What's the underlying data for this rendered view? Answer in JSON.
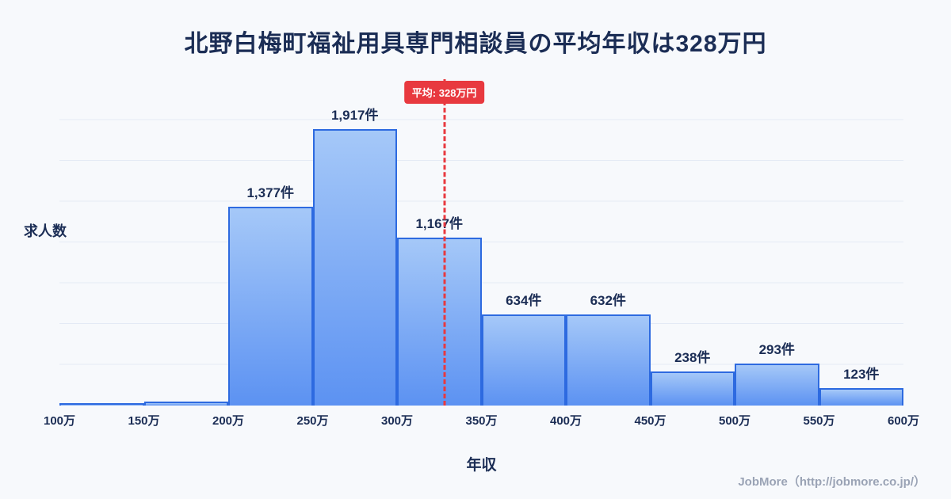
{
  "title": "北野白梅町福祉用具専門相談員の平均年収は328万円",
  "footer": "JobMore（http://jobmore.co.jp/）",
  "colors": {
    "background": "#f7f9fc",
    "title": "#1b2d55",
    "grid": "#e4eaf5",
    "bar_top": "#a5c8f8",
    "bar_bottom": "#5c92f2",
    "bar_border": "#2d6ae0",
    "average": "#e8393f",
    "footer": "#9aa3b5"
  },
  "chart_data": {
    "type": "bar",
    "title": "北野白梅町福祉用具専門相談員の平均年収は328万円",
    "xlabel": "年収",
    "ylabel": "求人数",
    "x_range": [
      100,
      600
    ],
    "bin_width_man_yen": 50,
    "x_ticks": [
      "100万",
      "150万",
      "200万",
      "250万",
      "300万",
      "350万",
      "400万",
      "450万",
      "500万",
      "550万",
      "600万"
    ],
    "categories": [
      "100万-150万",
      "150万-200万",
      "200万-250万",
      "250万-300万",
      "300万-350万",
      "350万-400万",
      "400万-450万",
      "450万-500万",
      "500万-550万",
      "550万-600万"
    ],
    "values": [
      15,
      25,
      1377,
      1917,
      1167,
      634,
      632,
      238,
      293,
      123
    ],
    "value_labels": [
      "",
      "",
      "1,377件",
      "1,917件",
      "1,167件",
      "634件",
      "632件",
      "238件",
      "293件",
      "123件"
    ],
    "average_line": {
      "x": 328,
      "label": "平均: 328万円"
    },
    "grid": true,
    "legend": false
  }
}
